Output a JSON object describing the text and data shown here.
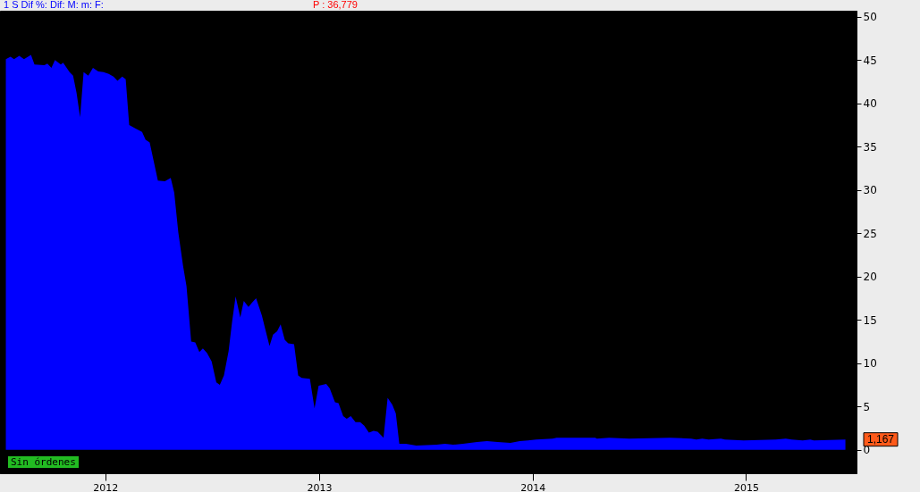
{
  "chart_data": {
    "type": "area",
    "title": "1 S  Dif %:        Dif:          M:          m:         F:",
    "color": "#0000ff",
    "annotations": [
      "P : 36,779",
      "Sin órdenes",
      "1,167"
    ],
    "x": [
      "2011-07-15",
      "2011-07-23",
      "2011-07-29",
      "2011-08-07",
      "2011-08-15",
      "2011-08-27",
      "2011-09-02",
      "2011-09-19",
      "2011-09-24",
      "2011-10-01",
      "2011-10-07",
      "2011-10-17",
      "2011-10-21",
      "2011-11-01",
      "2011-11-07",
      "2011-11-13",
      "2011-11-19",
      "2011-11-25",
      "2011-12-03",
      "2011-12-11",
      "2011-12-20",
      "2011-12-29",
      "2012-01-07",
      "2012-01-15",
      "2012-01-22",
      "2012-01-30",
      "2012-02-05",
      "2012-02-11",
      "2012-02-22",
      "2012-03-04",
      "2012-03-10",
      "2012-03-17",
      "2012-03-25",
      "2012-03-31",
      "2012-04-12",
      "2012-04-22",
      "2012-04-28",
      "2012-05-05",
      "2012-05-13",
      "2012-05-19",
      "2012-05-27",
      "2012-06-03",
      "2012-06-10",
      "2012-06-16",
      "2012-06-23",
      "2012-07-01",
      "2012-07-09",
      "2012-07-15",
      "2012-07-22",
      "2012-07-30",
      "2012-08-05",
      "2012-08-11",
      "2012-08-19",
      "2012-08-25",
      "2012-09-02",
      "2012-09-08",
      "2012-09-15",
      "2012-09-25",
      "2012-10-02",
      "2012-10-08",
      "2012-10-14",
      "2012-10-21",
      "2012-10-27",
      "2012-11-03",
      "2012-11-09",
      "2012-11-19",
      "2012-11-26",
      "2012-12-02",
      "2012-12-16",
      "2012-12-24",
      "2012-12-31",
      "2013-01-13",
      "2013-01-19",
      "2013-01-28",
      "2013-02-03",
      "2013-02-11",
      "2013-02-17",
      "2013-02-24",
      "2013-03-04",
      "2013-03-12",
      "2013-03-19",
      "2013-03-27",
      "2013-04-04",
      "2013-04-11",
      "2013-04-21",
      "2013-04-28",
      "2013-05-06",
      "2013-05-12",
      "2013-05-18",
      "2013-05-29",
      "2013-06-16",
      "2013-07-21",
      "2013-08-04",
      "2013-08-18",
      "2013-09-04",
      "2013-09-28",
      "2013-10-15",
      "2013-11-02",
      "2013-11-24",
      "2013-12-10",
      "2013-12-24",
      "2014-01-07",
      "2014-02-04",
      "2014-02-11",
      "2014-04-18",
      "2014-04-21",
      "2014-05-12",
      "2014-06-15",
      "2014-08-24",
      "2014-09-29",
      "2014-10-08",
      "2014-10-18",
      "2014-10-29",
      "2014-11-19",
      "2014-11-26",
      "2014-12-28",
      "2015-02-21",
      "2015-03-10",
      "2015-03-20",
      "2015-04-08",
      "2015-04-21",
      "2015-04-27",
      "2015-06-20"
    ],
    "values": [
      45.1,
      45.4,
      45.1,
      45.5,
      45.1,
      45.6,
      44.5,
      44.4,
      44.6,
      44.1,
      45.0,
      44.5,
      44.7,
      43.6,
      43.2,
      41.2,
      38.4,
      43.6,
      43.2,
      44.1,
      43.7,
      43.6,
      43.4,
      43.1,
      42.6,
      43.1,
      42.8,
      37.5,
      37.1,
      36.7,
      35.8,
      35.5,
      33.0,
      31.1,
      31.0,
      31.4,
      29.7,
      25.1,
      21.3,
      18.9,
      12.5,
      12.4,
      11.3,
      11.7,
      11.2,
      10.2,
      7.8,
      7.5,
      8.6,
      11.4,
      14.8,
      17.7,
      15.3,
      17.2,
      16.5,
      17.0,
      17.5,
      15.5,
      13.6,
      12.0,
      13.3,
      13.7,
      14.5,
      12.7,
      12.3,
      12.2,
      8.6,
      8.3,
      8.2,
      4.8,
      7.4,
      7.6,
      7.1,
      5.5,
      5.4,
      3.9,
      3.6,
      3.9,
      3.2,
      3.2,
      2.8,
      2.0,
      2.2,
      2.1,
      1.4,
      6.0,
      5.2,
      4.2,
      0.7,
      0.7,
      0.5,
      0.6,
      0.7,
      0.6,
      0.7,
      0.9,
      1.0,
      0.9,
      0.8,
      1.0,
      1.1,
      1.2,
      1.3,
      1.4,
      1.4,
      1.3,
      1.4,
      1.3,
      1.4,
      1.3,
      1.2,
      1.3,
      1.2,
      1.3,
      1.2,
      1.1,
      1.2,
      1.3,
      1.2,
      1.1,
      1.2,
      1.1,
      1.2
    ],
    "xlim": [
      "2011-07-05",
      "2015-07-09"
    ],
    "xticks": [
      {
        "value": "2012-01-01",
        "label": "2012"
      },
      {
        "value": "2013-01-01",
        "label": "2013"
      },
      {
        "value": "2014-01-01",
        "label": "2014"
      },
      {
        "value": "2015-01-01",
        "label": "2015"
      }
    ],
    "ylim": [
      -2.7,
      50.7
    ],
    "yticks": [
      0,
      5,
      10,
      15,
      20,
      25,
      30,
      35,
      40,
      45,
      50
    ],
    "grid": false
  }
}
